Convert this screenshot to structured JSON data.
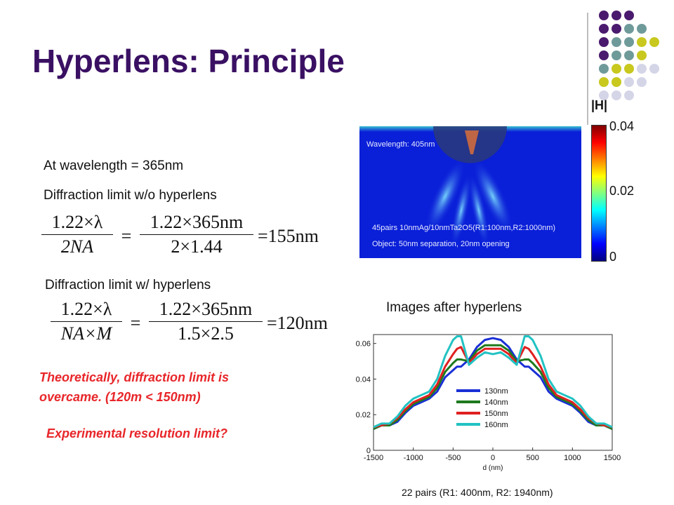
{
  "slide": {
    "title": "Hyperlens: Principle",
    "colors": {
      "title": "#3a1063",
      "highlight": "#e8262a"
    }
  },
  "left": {
    "wavelength_text": "At wavelength = 365nm",
    "limit_wo_text": "Diffraction limit w/o hyperlens",
    "limit_w_text": "Diffraction limit w/ hyperlens",
    "formula1": {
      "num1": "1.22×λ",
      "den1": "2NA",
      "num2": "1.22×365nm",
      "den2": "2×1.44",
      "result": "=155nm"
    },
    "formula2": {
      "num1": "1.22×λ",
      "den1": "NA×M",
      "num2": "1.22×365nm",
      "den2": "1.5×2.5",
      "result": "=120nm"
    },
    "conclusion_line1": "Theoretically, diffraction limit is",
    "conclusion_line2": "overcame. (120m < 150nm)",
    "question": "Experimental resolution limit?"
  },
  "simulation": {
    "wavelength_label": "Wavelength: 405nm",
    "structure_label": "45pairs 10nmAg/10nmTa2O5(R1:100nm,R2:1000nm)",
    "object_label": "Object: 50nm separation, 20nm opening",
    "colorbar_title": "|H|",
    "colorbar_ticks": [
      "0.04",
      "0.02",
      "0"
    ]
  },
  "plot": {
    "caption_top": "Images after hyperlens",
    "caption_bottom": "22 pairs (R1: 400nm, R2: 1940nm)"
  },
  "chart_data": {
    "type": "line",
    "xlabel": "d (nm)",
    "xlim": [
      -1500,
      1500
    ],
    "ylim": [
      0,
      0.065
    ],
    "xticks": [
      -1500,
      -1000,
      -500,
      0,
      500,
      1000,
      1500
    ],
    "yticks": [
      0,
      0.02,
      0.04,
      0.06
    ],
    "ytick_labels": [
      "0",
      "0.02",
      "0.04",
      "0.06"
    ],
    "x": [
      -1500,
      -1400,
      -1300,
      -1200,
      -1100,
      -1000,
      -900,
      -800,
      -700,
      -600,
      -500,
      -450,
      -400,
      -300,
      -200,
      -100,
      0,
      100,
      200,
      300,
      400,
      450,
      500,
      600,
      700,
      800,
      900,
      1000,
      1100,
      1200,
      1300,
      1400,
      1500
    ],
    "series": [
      {
        "name": "130nm",
        "color": "#1a2fd6",
        "values": [
          0.012,
          0.014,
          0.014,
          0.016,
          0.021,
          0.025,
          0.027,
          0.029,
          0.033,
          0.041,
          0.045,
          0.047,
          0.047,
          0.051,
          0.058,
          0.062,
          0.063,
          0.062,
          0.058,
          0.051,
          0.047,
          0.047,
          0.045,
          0.041,
          0.033,
          0.029,
          0.027,
          0.025,
          0.021,
          0.016,
          0.014,
          0.014,
          0.012
        ]
      },
      {
        "name": "140nm",
        "color": "#1e7a1e",
        "values": [
          0.012,
          0.014,
          0.014,
          0.017,
          0.022,
          0.026,
          0.028,
          0.03,
          0.035,
          0.044,
          0.049,
          0.051,
          0.051,
          0.05,
          0.056,
          0.059,
          0.059,
          0.059,
          0.056,
          0.05,
          0.051,
          0.051,
          0.049,
          0.044,
          0.035,
          0.03,
          0.028,
          0.026,
          0.022,
          0.017,
          0.014,
          0.014,
          0.012
        ]
      },
      {
        "name": "150nm",
        "color": "#e02020",
        "values": [
          0.013,
          0.014,
          0.015,
          0.018,
          0.023,
          0.027,
          0.029,
          0.031,
          0.037,
          0.047,
          0.054,
          0.057,
          0.058,
          0.049,
          0.054,
          0.057,
          0.057,
          0.057,
          0.054,
          0.049,
          0.058,
          0.057,
          0.054,
          0.047,
          0.037,
          0.031,
          0.029,
          0.027,
          0.023,
          0.018,
          0.015,
          0.014,
          0.013
        ]
      },
      {
        "name": "160nm",
        "color": "#22c2c2",
        "values": [
          0.013,
          0.015,
          0.015,
          0.019,
          0.025,
          0.029,
          0.031,
          0.033,
          0.04,
          0.053,
          0.062,
          0.064,
          0.064,
          0.048,
          0.052,
          0.055,
          0.054,
          0.055,
          0.052,
          0.048,
          0.064,
          0.064,
          0.062,
          0.053,
          0.04,
          0.033,
          0.031,
          0.029,
          0.025,
          0.019,
          0.015,
          0.015,
          0.013
        ]
      }
    ],
    "legend_position": "center",
    "grid": false
  }
}
